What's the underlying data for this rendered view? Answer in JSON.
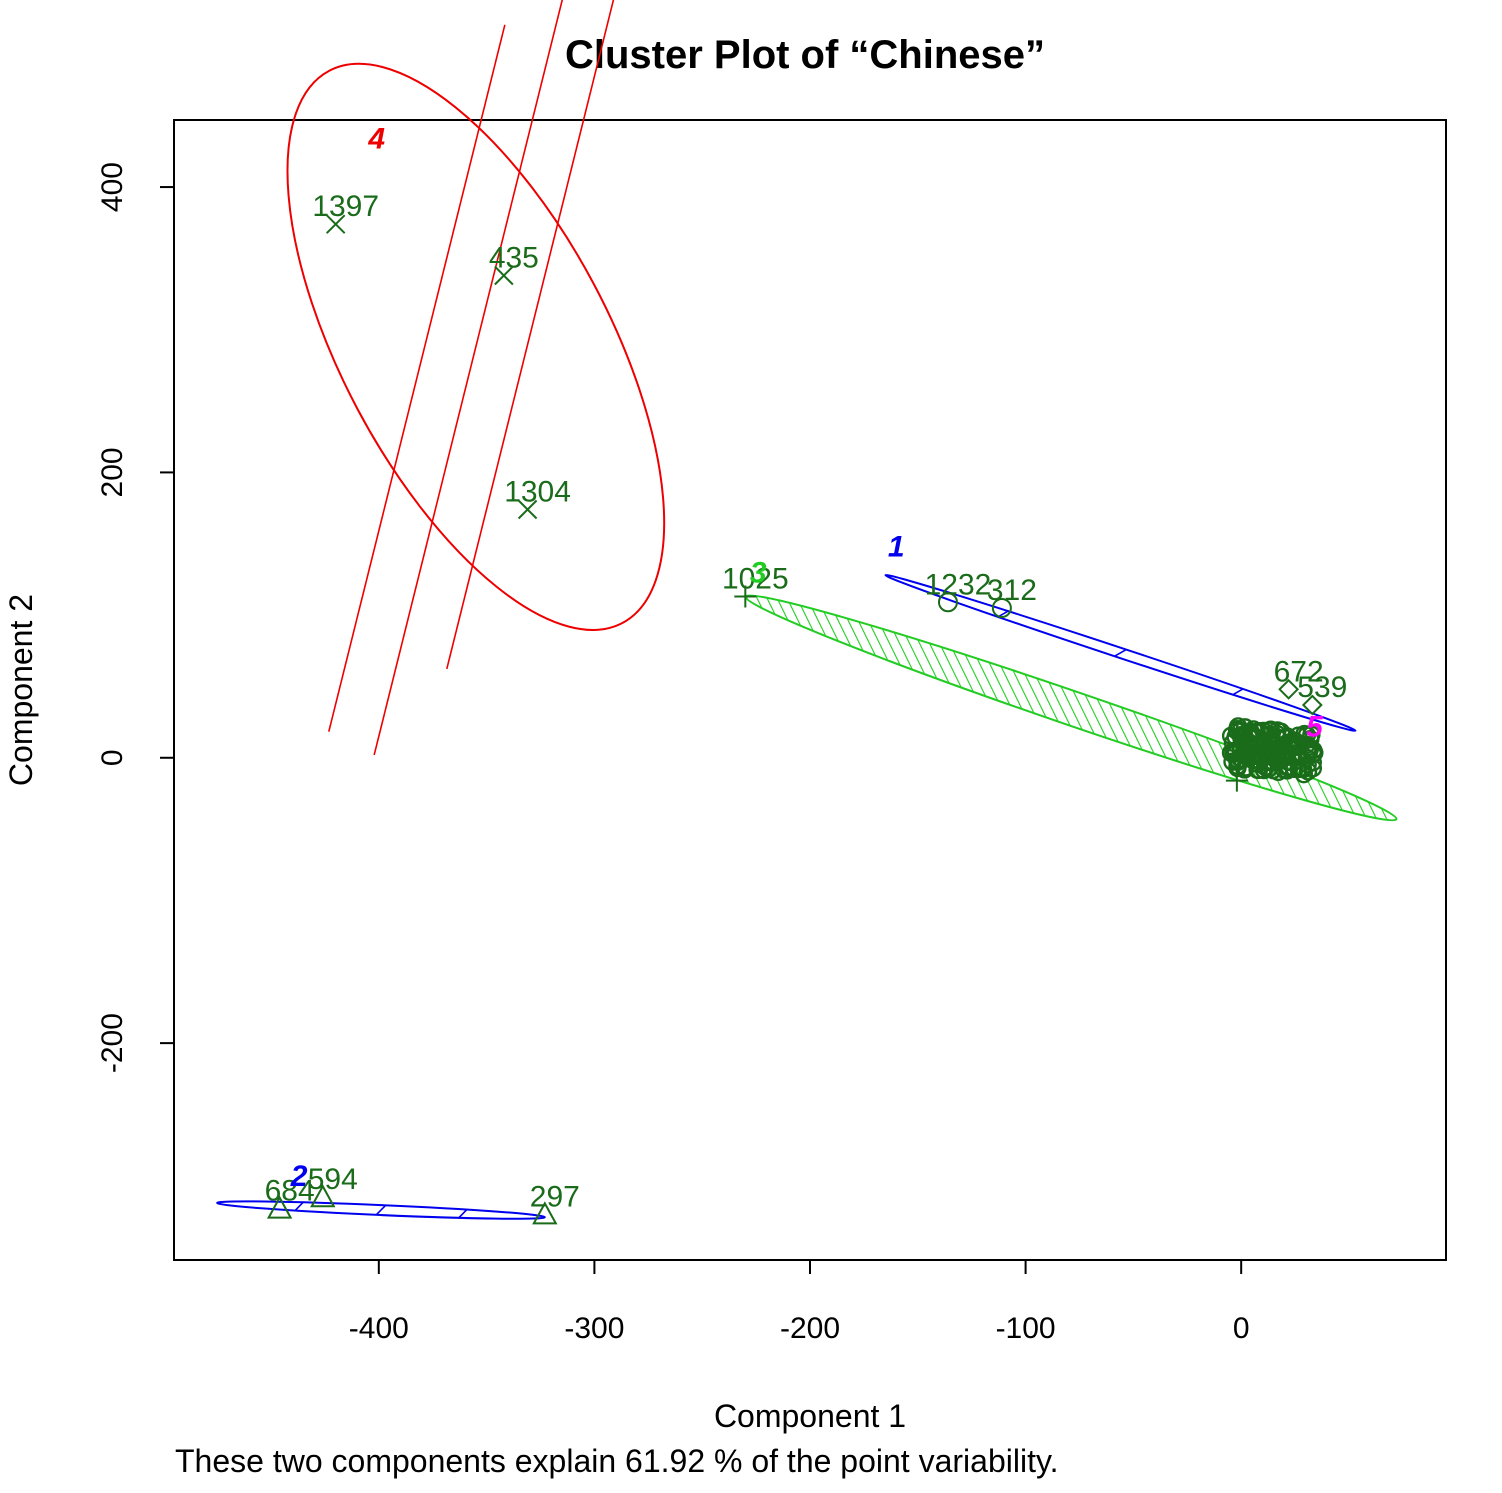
{
  "chart_data": {
    "type": "scatter",
    "title": "Cluster Plot of “Chinese”",
    "xlabel": "Component 1",
    "ylabel": "Component 2",
    "note": "These two components explain 61.92 % of the point variability.",
    "xlim": [
      -495,
      95
    ],
    "ylim": [
      -352,
      447
    ],
    "xticks": [
      -400,
      -300,
      -200,
      -100,
      0
    ],
    "yticks": [
      -200,
      0,
      200,
      400
    ],
    "grid": false,
    "colors": {
      "point": "#1a6b1a",
      "cluster1": "#0000ee",
      "cluster2": "#0000ee",
      "cluster3": "#22cc22",
      "cluster4": "#ee0000",
      "cluster5": "#ff00ff"
    },
    "clusters": [
      {
        "label": "1",
        "color": "#0000ee",
        "marker": "circle",
        "ellipse": {
          "endpoints": [
            [
              -165,
              128
            ],
            [
              53,
              19
            ]
          ],
          "half_width_units": 3.5,
          "shading": "sparse"
        },
        "label_at": [
          -160,
          141
        ],
        "points": [
          {
            "x": -136,
            "y": 109,
            "label": "1232"
          },
          {
            "x": -111,
            "y": 105,
            "label": "312"
          }
        ]
      },
      {
        "label": "2",
        "color": "#0000ee",
        "marker": "triangle",
        "ellipse": {
          "endpoints": [
            [
              -475,
              -312
            ],
            [
              -323,
              -322
            ]
          ],
          "half_width_units": 3.5,
          "shading": "sparse"
        },
        "label_at": [
          -437,
          -300
        ],
        "points": [
          {
            "x": -446,
            "y": -316,
            "label": "684"
          },
          {
            "x": -426,
            "y": -308,
            "label": "594"
          },
          {
            "x": -323,
            "y": -320,
            "label": "297"
          }
        ]
      },
      {
        "label": "3",
        "color": "#22cc22",
        "marker": "plus",
        "ellipse": {
          "endpoints": [
            [
              -230,
              113
            ],
            [
              72,
              -43
            ]
          ],
          "half_width_units": 12,
          "shading": "dense"
        },
        "label_at": [
          -224,
          123
        ],
        "points": [
          {
            "x": -230,
            "y": 113,
            "label": "1025"
          },
          {
            "x": -2,
            "y": -16,
            "label": ""
          }
        ]
      },
      {
        "label": "4",
        "color": "#ee0000",
        "marker": "x",
        "ellipse": {
          "center": [
            -355,
            288
          ],
          "rx_units": 62,
          "ry_units": 145,
          "rotate_deg": -28,
          "shading": "sparse"
        },
        "label_at": [
          -401,
          427
        ],
        "points": [
          {
            "x": -420,
            "y": 374,
            "label": "1397"
          },
          {
            "x": -342,
            "y": 338,
            "label": "435"
          },
          {
            "x": -331,
            "y": 174,
            "label": "1304"
          }
        ]
      },
      {
        "label": "5",
        "color": "#ff00ff",
        "marker": "diamond",
        "label_at": [
          34,
          15
        ],
        "points": [
          {
            "x": 22,
            "y": 48,
            "label": "672"
          },
          {
            "x": 33,
            "y": 37,
            "label": "539"
          }
        ]
      }
    ]
  }
}
